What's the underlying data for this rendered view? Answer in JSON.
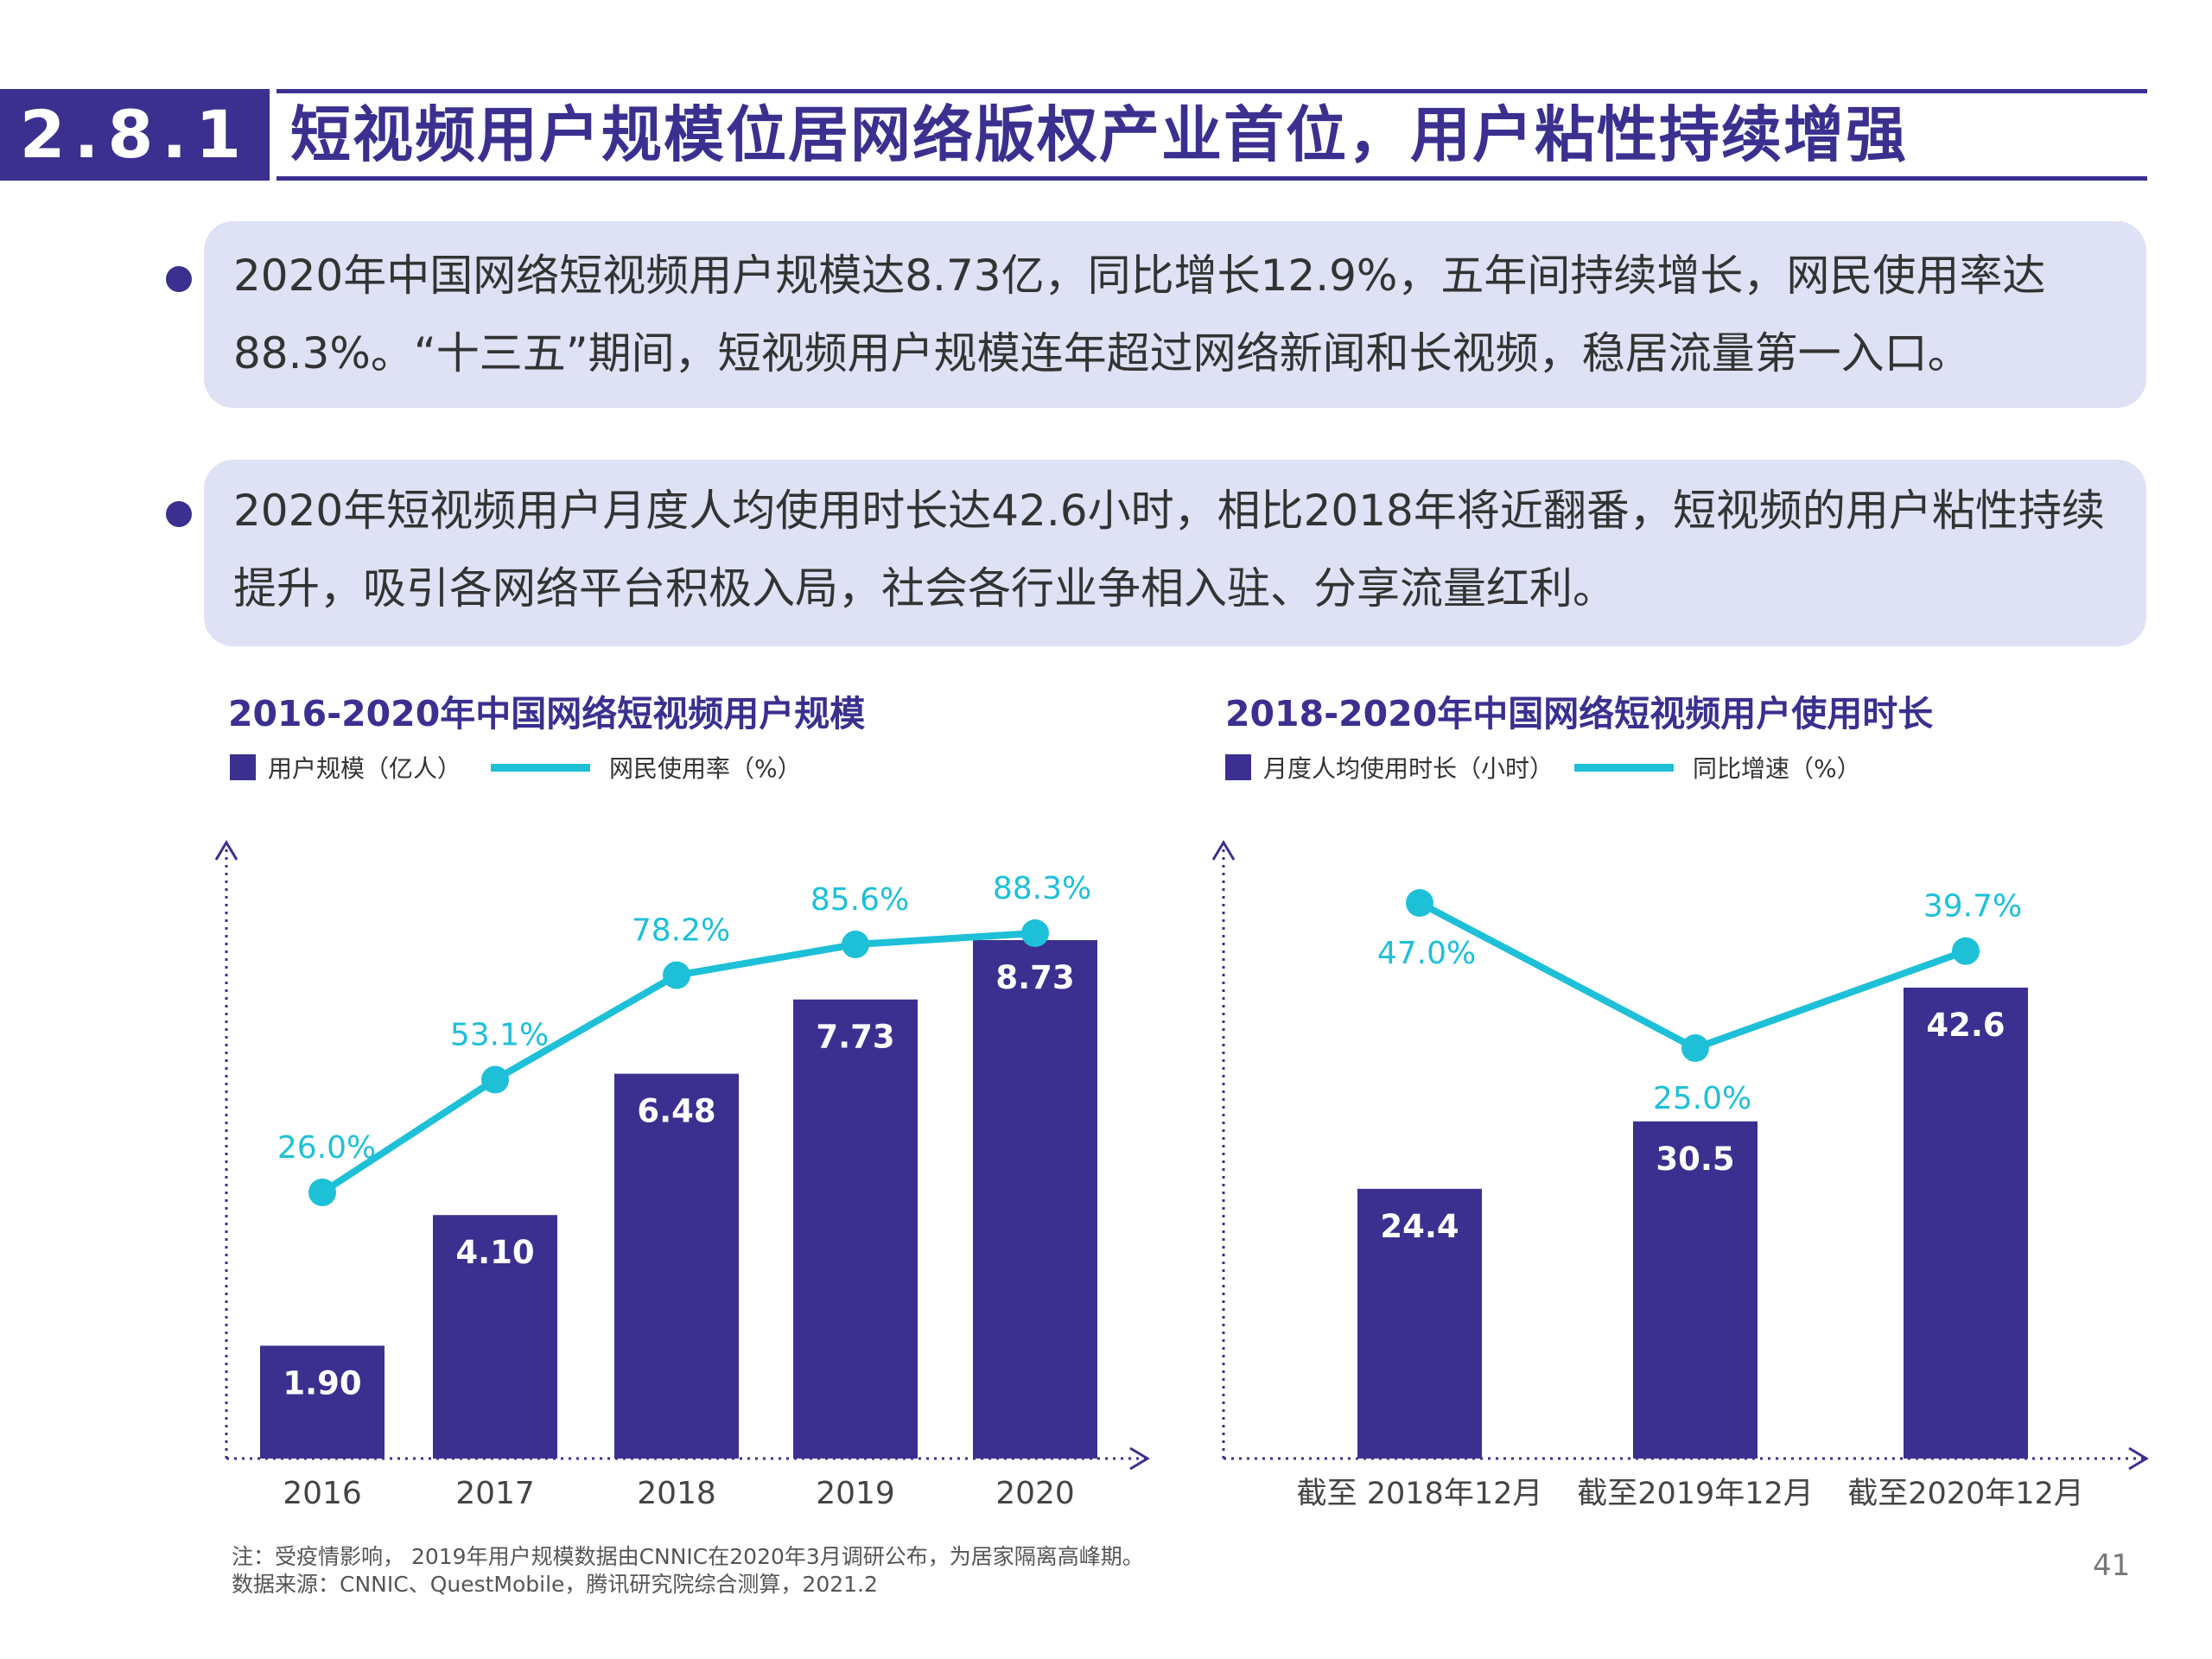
{
  "header": {
    "section_number": "2.8.1",
    "title": "短视频用户规模位居网络版权产业首位，用户粘性持续增强"
  },
  "bullets": [
    {
      "line1": "2020年中国网络短视频用户规模达8.73亿，同比增长12.9%，五年间持续增长，网民使用率达",
      "line2": "88.3%。“十三五”期间，短视频用户规模连年超过网络新闻和长视频，稳居流量第一入口。"
    },
    {
      "line1": "2020年短视频用户月度人均使用时长达42.6小时，相比2018年将近翻番，短视频的用户粘性持续",
      "line2": "提升，吸引各网络平台积极入局，社会各行业争相入驻、分享流量红利。"
    }
  ],
  "colors": {
    "primary": "#3b2f8f",
    "accent": "#1ec0d8",
    "bullet_bg": "#dfe1f4"
  },
  "chart_data": [
    {
      "type": "bar",
      "title": "2016-2020年中国网络短视频用户规模",
      "categories": [
        "2016",
        "2017",
        "2018",
        "2019",
        "2020"
      ],
      "series": [
        {
          "name": "用户规模（亿人）",
          "type": "bar",
          "values": [
            1.9,
            4.1,
            6.48,
            7.73,
            8.73
          ],
          "labels": [
            "1.90",
            "4.10",
            "6.48",
            "7.73",
            "8.73"
          ]
        },
        {
          "name": "网民使用率（%）",
          "type": "line",
          "values": [
            26.0,
            53.1,
            78.2,
            85.6,
            88.3
          ],
          "labels": [
            "26.0%",
            "53.1%",
            "78.2%",
            "85.6%",
            "88.3%"
          ]
        }
      ],
      "legend": "top-left"
    },
    {
      "type": "bar",
      "title": "2018-2020年中国网络短视频用户使用时长",
      "categories": [
        "截至 2018年12月",
        "截至2019年12月",
        "截至2020年12月"
      ],
      "series": [
        {
          "name": "月度人均使用时长（小时）",
          "type": "bar",
          "values": [
            24.4,
            30.5,
            42.6
          ],
          "labels": [
            "24.4",
            "30.5",
            "42.6"
          ]
        },
        {
          "name": "同比增速（%）",
          "type": "line",
          "values": [
            47.0,
            25.0,
            39.7
          ],
          "labels": [
            "47.0%",
            "25.0%",
            "39.7%"
          ]
        }
      ],
      "legend": "top-left"
    }
  ],
  "footnotes": {
    "note": "注：受疫情影响， 2019年用户规模数据由CNNIC在2020年3月调研公布，为居家隔离高峰期。",
    "source": "数据来源：CNNIC、QuestMobile，腾讯研究院综合测算，2021.2"
  },
  "page_number": "41"
}
